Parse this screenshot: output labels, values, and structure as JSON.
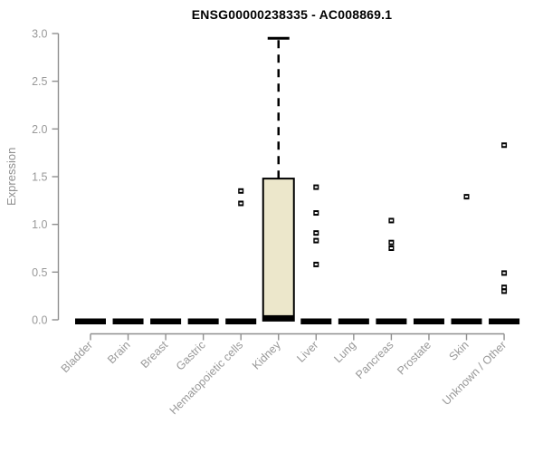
{
  "chart_data": {
    "type": "box",
    "title": "ENSG00000238335 - AC008869.1",
    "ylabel": "Expression",
    "xlabel": "",
    "ylim": [
      0.0,
      3.0
    ],
    "ytick_labels": [
      "0.0",
      "0.5",
      "1.0",
      "1.5",
      "2.0",
      "2.5",
      "3.0"
    ],
    "grid": false,
    "legend": "none",
    "categories": [
      "Bladder",
      "Brain",
      "Breast",
      "Gastric",
      "Hematopoietic cells",
      "Kidney",
      "Liver",
      "Lung",
      "Pancreas",
      "Prostate",
      "Skin",
      "Unknown / Other"
    ],
    "series": [
      {
        "category": "Bladder",
        "q1": 0,
        "median": 0,
        "q3": 0,
        "whisker_low": 0,
        "whisker_high": 0,
        "outliers": []
      },
      {
        "category": "Brain",
        "q1": 0,
        "median": 0,
        "q3": 0,
        "whisker_low": 0,
        "whisker_high": 0,
        "outliers": []
      },
      {
        "category": "Breast",
        "q1": 0,
        "median": 0,
        "q3": 0,
        "whisker_low": 0,
        "whisker_high": 0,
        "outliers": []
      },
      {
        "category": "Gastric",
        "q1": 0,
        "median": 0,
        "q3": 0,
        "whisker_low": 0,
        "whisker_high": 0,
        "outliers": []
      },
      {
        "category": "Hematopoietic cells",
        "q1": 0,
        "median": 0,
        "q3": 0,
        "whisker_low": 0,
        "whisker_high": 0,
        "outliers": [
          1.35,
          1.22
        ]
      },
      {
        "category": "Kidney",
        "q1": 0.02,
        "median": 0.02,
        "q3": 1.48,
        "whisker_low": 0,
        "whisker_high": 2.95,
        "outliers": []
      },
      {
        "category": "Liver",
        "q1": 0,
        "median": 0,
        "q3": 0,
        "whisker_low": 0,
        "whisker_high": 0,
        "outliers": [
          1.39,
          1.12,
          0.91,
          0.83,
          0.58
        ]
      },
      {
        "category": "Lung",
        "q1": 0,
        "median": 0,
        "q3": 0,
        "whisker_low": 0,
        "whisker_high": 0,
        "outliers": []
      },
      {
        "category": "Pancreas",
        "q1": 0,
        "median": 0,
        "q3": 0,
        "whisker_low": 0,
        "whisker_high": 0,
        "outliers": [
          1.04,
          0.81,
          0.75
        ]
      },
      {
        "category": "Prostate",
        "q1": 0,
        "median": 0,
        "q3": 0,
        "whisker_low": 0,
        "whisker_high": 0,
        "outliers": []
      },
      {
        "category": "Skin",
        "q1": 0,
        "median": 0,
        "q3": 0,
        "whisker_low": 0,
        "whisker_high": 0,
        "outliers": [
          1.29
        ]
      },
      {
        "category": "Unknown / Other",
        "q1": 0,
        "median": 0,
        "q3": 0,
        "whisker_low": 0,
        "whisker_high": 0,
        "outliers": [
          1.83,
          0.49,
          0.34,
          0.3
        ]
      }
    ],
    "colors": {
      "box_fill": "#ECE7CB",
      "box_stroke": "#000000",
      "median": "#000000",
      "outlier": "#000000",
      "axis": "#8F8F8F",
      "tick_text": "#999999",
      "title": "#000000",
      "background": "#FFFFFF"
    }
  }
}
